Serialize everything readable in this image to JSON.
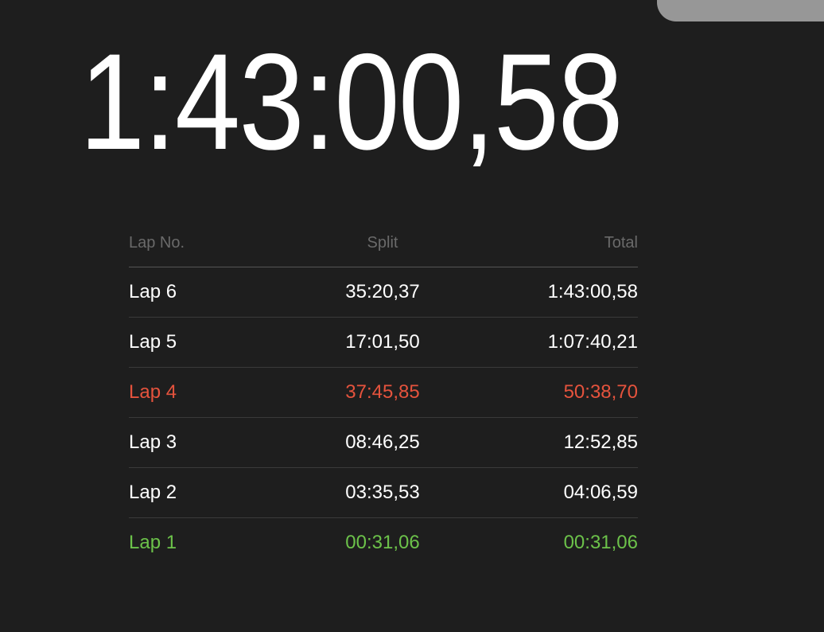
{
  "stopwatch": {
    "time": "1:43:00,58"
  },
  "laps": {
    "headers": {
      "lap": "Lap No.",
      "split": "Split",
      "total": "Total"
    },
    "rows": [
      {
        "lap": "Lap 6",
        "split": "35:20,37",
        "total": "1:43:00,58",
        "status": "normal"
      },
      {
        "lap": "Lap 5",
        "split": "17:01,50",
        "total": "1:07:40,21",
        "status": "normal"
      },
      {
        "lap": "Lap 4",
        "split": "37:45,85",
        "total": "50:38,70",
        "status": "slowest"
      },
      {
        "lap": "Lap 3",
        "split": "08:46,25",
        "total": "12:52,85",
        "status": "normal"
      },
      {
        "lap": "Lap 2",
        "split": "03:35,53",
        "total": "04:06,59",
        "status": "normal"
      },
      {
        "lap": "Lap 1",
        "split": "00:31,06",
        "total": "00:31,06",
        "status": "fastest"
      }
    ]
  },
  "colors": {
    "normal": "#ffffff",
    "slowest": "#e5533d",
    "fastest": "#6cc24a",
    "background": "#1e1e1e"
  }
}
